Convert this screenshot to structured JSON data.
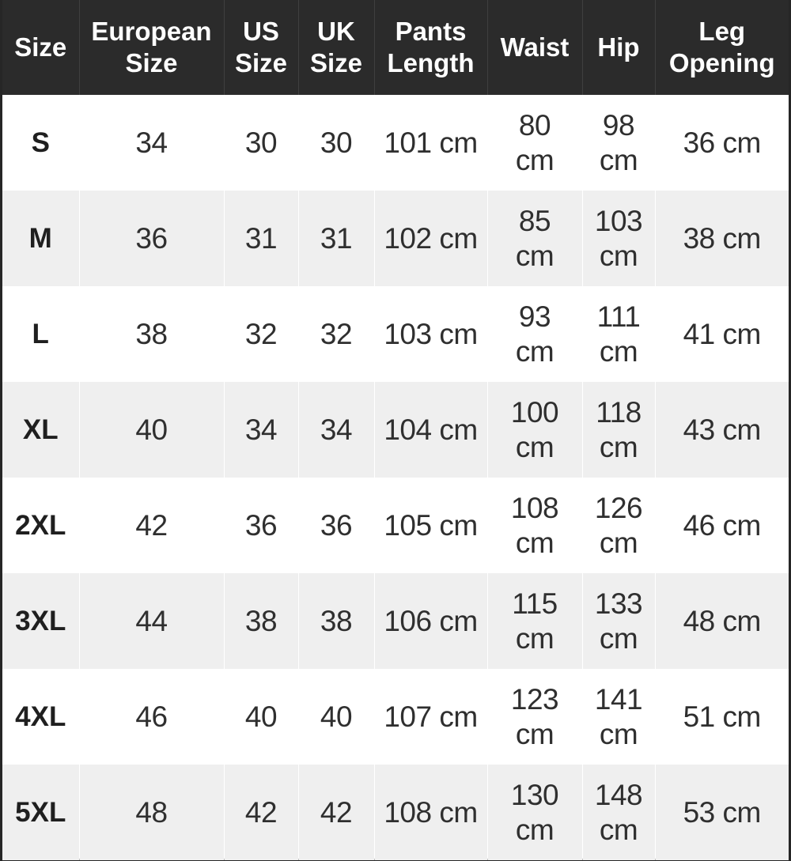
{
  "colors": {
    "header_bg": "#2b2b2b",
    "header_text": "#ffffff",
    "row_alt_bg": "#efefef",
    "body_text": "#2f2f2f",
    "outer_border": "#262626"
  },
  "chart_data": {
    "type": "table",
    "columns": [
      "Size",
      "European Size",
      "US Size",
      "UK Size",
      "Pants Length",
      "Waist",
      "Hip",
      "Leg Opening"
    ],
    "rows": [
      [
        "S",
        "34",
        "30",
        "30",
        "101 cm",
        "80 cm",
        "98 cm",
        "36 cm"
      ],
      [
        "M",
        "36",
        "31",
        "31",
        "102 cm",
        "85 cm",
        "103 cm",
        "38 cm"
      ],
      [
        "L",
        "38",
        "32",
        "32",
        "103 cm",
        "93 cm",
        "111 cm",
        "41 cm"
      ],
      [
        "XL",
        "40",
        "34",
        "34",
        "104 cm",
        "100 cm",
        "118 cm",
        "43 cm"
      ],
      [
        "2XL",
        "42",
        "36",
        "36",
        "105 cm",
        "108 cm",
        "126 cm",
        "46 cm"
      ],
      [
        "3XL",
        "44",
        "38",
        "38",
        "106 cm",
        "115 cm",
        "133 cm",
        "48 cm"
      ],
      [
        "4XL",
        "46",
        "40",
        "40",
        "107 cm",
        "123 cm",
        "141 cm",
        "51 cm"
      ],
      [
        "5XL",
        "48",
        "42",
        "42",
        "108 cm",
        "130 cm",
        "148 cm",
        "53 cm"
      ]
    ]
  }
}
